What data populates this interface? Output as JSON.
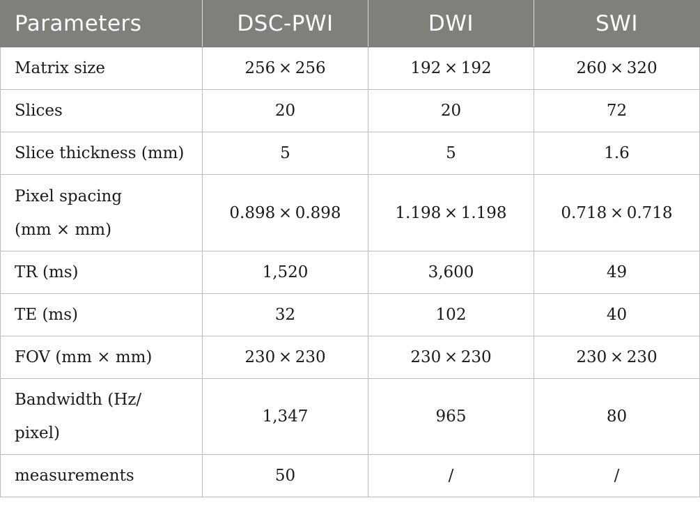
{
  "table": {
    "headers": [
      "Parameters",
      "DSC-PWI",
      "DWI",
      "SWI"
    ],
    "rows": [
      {
        "label": "Matrix size",
        "dsc_pwi": "256 × 256",
        "dwi": "192 × 192",
        "swi": "260 × 320"
      },
      {
        "label": "Slices",
        "dsc_pwi": "20",
        "dwi": "20",
        "swi": "72"
      },
      {
        "label": "Slice thickness (mm)",
        "dsc_pwi": "5",
        "dwi": "5",
        "swi": "1.6"
      },
      {
        "label_line1": "Pixel spacing",
        "label_line2": "(mm × mm)",
        "dsc_pwi": "0.898 × 0.898",
        "dwi": "1.198 × 1.198",
        "swi": "0.718 × 0.718"
      },
      {
        "label": "TR (ms)",
        "dsc_pwi": "1,520",
        "dwi": "3,600",
        "swi": "49"
      },
      {
        "label": "TE (ms)",
        "dsc_pwi": "32",
        "dwi": "102",
        "swi": "40"
      },
      {
        "label": "FOV (mm × mm)",
        "dsc_pwi": "230 × 230",
        "dwi": "230 × 230",
        "swi": "230 × 230"
      },
      {
        "label_line1": "Bandwidth (Hz/",
        "label_line2": "pixel)",
        "dsc_pwi": "1,347",
        "dwi": "965",
        "swi": "80"
      },
      {
        "label": "measurements",
        "dsc_pwi": "50",
        "dwi": "/",
        "swi": "/"
      }
    ]
  }
}
